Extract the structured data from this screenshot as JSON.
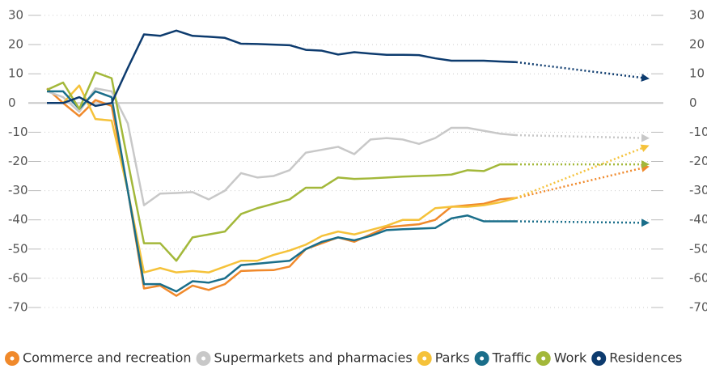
{
  "chart_data": {
    "type": "line",
    "ylim": [
      -75,
      30
    ],
    "yticks": [
      30,
      20,
      10,
      0,
      -10,
      -20,
      -30,
      -40,
      -50,
      -60,
      -70
    ],
    "grid": true,
    "series": [
      {
        "name": "Commerce and recreation",
        "color": "#f0892b",
        "values": [
          5,
          0,
          -4.5,
          1,
          -1,
          -30,
          -63.5,
          -62.5,
          -66,
          -62.5,
          -64,
          -62,
          -57.5,
          -57.3,
          -57.2,
          -56,
          -50,
          -48,
          -46,
          -47.5,
          -45,
          -42.5,
          -42,
          -41.5,
          -40,
          -35.5,
          -35,
          -34.5,
          -33,
          -32.5
        ],
        "projection": -22
      },
      {
        "name": "Supermarkets and pharmacies",
        "color": "#c8c8c8",
        "values": [
          4,
          2,
          -3,
          5,
          4,
          -7,
          -35,
          -31,
          -30.8,
          -30.5,
          -33,
          -30,
          -24,
          -25.5,
          -25,
          -23,
          -17,
          -16,
          -15,
          -17.5,
          -12.5,
          -12,
          -12.5,
          -14,
          -12,
          -8.5,
          -8.5,
          -9.5,
          -10.5,
          -11
        ],
        "projection": -12
      },
      {
        "name": "Parks",
        "color": "#f5c23a",
        "values": [
          0,
          0,
          6,
          -5.5,
          -6,
          -30,
          -58,
          -56.5,
          -58,
          -57.5,
          -58,
          -56,
          -54,
          -54,
          -52,
          -50.5,
          -48.5,
          -45.5,
          -44,
          -45,
          -43.5,
          -42,
          -40,
          -40,
          -36,
          -35.5,
          -35.5,
          -35,
          -34,
          -32.5
        ],
        "projection": -15
      },
      {
        "name": "Traffic",
        "color": "#1a6e8a",
        "values": [
          4,
          4,
          -2,
          4,
          2,
          -30,
          -62,
          -62,
          -64.5,
          -61,
          -61.5,
          -60,
          -55.5,
          -55,
          -54.5,
          -54,
          -50,
          -47.5,
          -46,
          -47,
          -45.5,
          -43.5,
          -43.2,
          -43,
          -42.8,
          -39.5,
          -38.5,
          -40.5,
          -40.5,
          -40.5
        ],
        "projection": -41
      },
      {
        "name": "Work",
        "color": "#a3b83a",
        "values": [
          4.5,
          7,
          -2,
          10.5,
          8.5,
          -20,
          -48,
          -48,
          -54,
          -46,
          -45,
          -44,
          -38,
          -36,
          -34.5,
          -33,
          -29,
          -29,
          -25.5,
          -26,
          -25.8,
          -25.5,
          -25.2,
          -25,
          -24.8,
          -24.5,
          -23,
          -23.3,
          -21,
          -21
        ],
        "projection": -21
      },
      {
        "name": "Residences",
        "color": "#0d3b6e",
        "values": [
          0,
          0,
          2,
          -1,
          0,
          12,
          23.5,
          23,
          24.8,
          23,
          22.7,
          22.3,
          20.3,
          20.2,
          20,
          19.8,
          18.2,
          17.9,
          16.6,
          17.4,
          16.9,
          16.5,
          16.5,
          16.4,
          15.3,
          14.5,
          14.5,
          14.5,
          14.2,
          14
        ],
        "projection": 8.5
      }
    ]
  }
}
